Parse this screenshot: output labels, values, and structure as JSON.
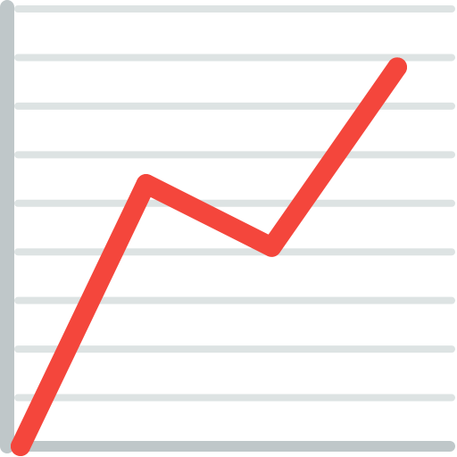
{
  "icon": {
    "name": "line-chart-icon",
    "colors": {
      "background": "#ffffff",
      "gridline": "#dde3e3",
      "axis": "#bfc7c9",
      "trend_line": "#f4463c"
    }
  },
  "chart_data": {
    "type": "line",
    "x": [
      0,
      1,
      2,
      3
    ],
    "y": [
      0,
      5.4,
      4.1,
      7.8
    ],
    "ylim": [
      0,
      9
    ],
    "grid": true,
    "legend": "none",
    "title": "",
    "xlabel": "",
    "ylabel": ""
  }
}
